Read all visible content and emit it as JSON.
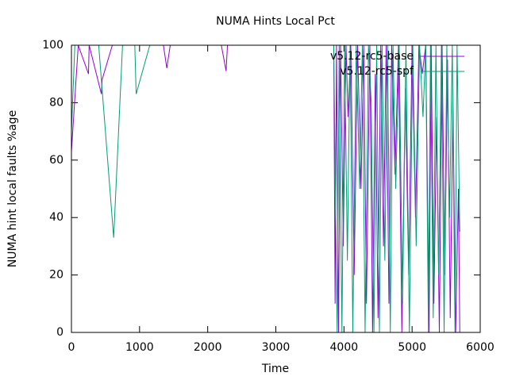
{
  "chart_data": {
    "type": "line",
    "title": "NUMA Hints Local Pct",
    "xlabel": "Time",
    "ylabel": "NUMA hint local faults %age",
    "xlim": [
      0,
      6000
    ],
    "xticks": [
      0,
      1000,
      2000,
      3000,
      4000,
      5000,
      6000
    ],
    "ylim": [
      0,
      100
    ],
    "yticks": [
      0,
      20,
      40,
      60,
      80,
      100
    ],
    "legend": "top-right",
    "series": [
      {
        "name": "v5.12-rc5-base",
        "color": "#9400d3",
        "x": [
          0,
          100,
          250,
          260,
          440,
          450,
          600,
          1350,
          1400,
          1450,
          2200,
          2270,
          2290,
          3850,
          3870,
          3890,
          3920,
          3950,
          3990,
          4030,
          4060,
          4100,
          4150,
          4200,
          4250,
          4290,
          4330,
          4380,
          4420,
          4460,
          4500,
          4540,
          4580,
          4620,
          4660,
          4700,
          4750,
          4800,
          4850,
          4900,
          4950,
          5000,
          5050,
          5100,
          5150,
          5200,
          5250,
          5280,
          5320,
          5360,
          5400,
          5440,
          5480,
          5520,
          5560,
          5600,
          5640,
          5680,
          5700
        ],
        "values": [
          63,
          100,
          90,
          100,
          83,
          88,
          100,
          100,
          92,
          100,
          100,
          91,
          100,
          100,
          10,
          100,
          0,
          100,
          30,
          100,
          75,
          100,
          20,
          100,
          50,
          100,
          10,
          100,
          0,
          90,
          5,
          100,
          30,
          100,
          10,
          100,
          55,
          100,
          0,
          85,
          20,
          100,
          40,
          100,
          90,
          100,
          0,
          100,
          10,
          75,
          0,
          100,
          20,
          95,
          5,
          80,
          0,
          50,
          0
        ]
      },
      {
        "name": "v5.12-rc5-spf",
        "color": "#009e73",
        "x": [
          0,
          50,
          400,
          620,
          750,
          930,
          950,
          1150,
          3850,
          3900,
          3930,
          3970,
          4010,
          4050,
          4090,
          4130,
          4180,
          4230,
          4270,
          4310,
          4360,
          4400,
          4440,
          4480,
          4520,
          4560,
          4600,
          4640,
          4680,
          4720,
          4760,
          4810,
          4860,
          4910,
          4960,
          5010,
          5060,
          5110,
          5160,
          5200,
          5240,
          5270,
          5310,
          5350,
          5390,
          5430,
          5470,
          5510,
          5550,
          5590,
          5630,
          5660,
          5700
        ],
        "values": [
          70,
          100,
          100,
          33,
          100,
          100,
          83,
          100,
          100,
          0,
          100,
          0,
          100,
          25,
          100,
          0,
          100,
          50,
          100,
          0,
          100,
          80,
          0,
          100,
          0,
          100,
          25,
          100,
          0,
          100,
          50,
          100,
          10,
          100,
          0,
          100,
          30,
          100,
          75,
          100,
          0,
          100,
          5,
          100,
          20,
          100,
          0,
          100,
          40,
          100,
          0,
          100,
          35
        ]
      }
    ]
  }
}
